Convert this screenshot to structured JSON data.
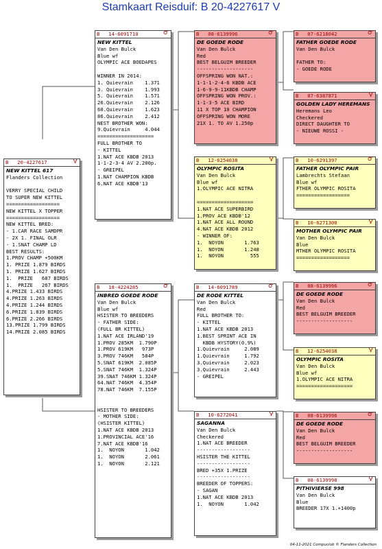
{
  "title": "Stamkaart Reisduif: B    20-4227617 V",
  "footer": "04-11-2021     Compuclub © Flanders Collection",
  "colors": {
    "red_card": "#f4a5a5",
    "yellow_card": "#ffffbe",
    "header_text": "#9b0000"
  },
  "cards": [
    {
      "id": "c0",
      "bg": "w",
      "ring": "B   20-4227617",
      "sex": "♀",
      "lines": [
        "NEW KITTEL 617",
        "Flanders Collection",
        "",
        "VERRY SPECIAL CHILD",
        "TO SUPER NEW KITTEL",
        "==================",
        "NEW KITTEL X TOPPER",
        "==================",
        "NEW KITTEL BRED:",
        "- 1.CAR RACE SAMDPR",
        "- 2X 1. FINAL OLR",
        "- 1.SNAT CHAMP LD",
        "BEST RESULTS:",
        "1.PROV CHAMP +500KM",
        "1. PRIZE 1.879 BIRDS",
        "1. PRIZE 1.627 BIRDS",
        "1.  PRIZE   687 BIRDS",
        "1.  PRIZE   267 BIRDS",
        "4.PRIZE 1.433 BIRDS",
        "4.PRIZE 1.263 BIRDS",
        "4.PRIZE 1.244 BIRDS",
        "6.PRIZE 1.839 BIRDS",
        "6.PRIZE 2.266 BIRDS",
        "13.PRIZE 1.799 BIRDS",
        "14.PRIZE 2.085 BIRDS"
      ]
    },
    {
      "id": "c1",
      "bg": "w",
      "ring": "B   14-6091710",
      "sex": "♂",
      "lines": [
        "NEW KITTEL",
        "Van Den Bulck",
        "Blue wf",
        "OLYMPIC ACE BOEDAPES",
        "",
        "WINNER IN 2014:",
        "1. Quievrain    1.371",
        "3. Quievrain    1.993",
        "5. Quievrain    1.571",
        "26.Quievrain    2.126",
        "60.Quievrain    1.623",
        "86.Quievrain    2.412",
        "NEST BROTHER WON:",
        "9.Quievrain     4.044",
        "===================",
        "FULL BROTHER TO",
        "- KITTEL",
        "1.NAT ACE KBDB 2013",
        "1-1-2-3-4 AV 2.200p.",
        "- GREIPEL",
        "1.NAT CHAMPION KBDB",
        "6.NAT ACE KBDB'13"
      ]
    },
    {
      "id": "c2",
      "bg": "w",
      "ring": "B   18-4224285",
      "sex": "♂",
      "lines": [
        "INBRED GOEDE RODE",
        "Van Den Bulck",
        "Blue wf",
        "HSISTER TO BREEDERS",
        "- FATHER SIDE:",
        "(FULL BR KITTEL)",
        "1.NAT ACE IRLAND'19",
        "1.PROV 285KM  1.790P",
        "1.PROV 619KM   973P",
        "3.PROV 746KM   584P",
        "5.SNAT 619KM  2.085P",
        "5.SNAT 746KM  1.324P",
        "39.SNAT 746KM 1.324P",
        "64.NAT 746KM  4.354P",
        "78.NAT 746KM  7.155P",
        "",
        "",
        "HSISTER TO BREEDERS",
        "- MOTHER SIDE:",
        "(HSISTER KITTEL)",
        "1.NAT ACE KBDB 2013",
        "1.PROVINCIAL ACE'16",
        "7.NAT ACE KBDB'16",
        "1.  NOYON       1.042",
        "1.  NOYON       2.061",
        "1.  NOYON       2.121"
      ]
    },
    {
      "id": "c3",
      "bg": "r",
      "ring": "B   08-6139996",
      "sex": "♂",
      "lines": [
        "DE GOEDE RODE",
        "Van Den Bulck",
        "Red",
        "BEST BELGUIM BREEDER",
        "-------------------",
        "OFFSPRING WON NAT.:",
        "1-1-1-2-4-6 KBDB ACE",
        "1-6-9-9-11KBDB CHAMP",
        "OFFSPRING WON PROV.:",
        "1-1-3-5 ACE BIRD",
        "11 X TOP 10 CHAMPION",
        "OFFSPRING WON MORE",
        "21X 1. TO AV 1.250p"
      ]
    },
    {
      "id": "c4",
      "bg": "y",
      "ring": "B   12-6254038",
      "sex": "♀",
      "lines": [
        "OLYMPIC ROSITA",
        "Van Den Bulck",
        "Blue wf",
        "1.OLYMPIC ACE NITRA",
        "",
        "===================",
        "1.NAT ACE SUPERBIRD",
        "1.PROV ACE KBDB'12",
        "1.NAT ACE ALL ROUND",
        "4.NAT ACE KBDB 2012",
        "- WINNER OF:",
        "1.  NOYON       1.763",
        "1.  NOYON       1.248",
        "1.  NOYON         555"
      ]
    },
    {
      "id": "c5",
      "bg": "w",
      "ring": "B   14-6091789",
      "sex": "♂",
      "lines": [
        "DE RODE KITTEL",
        "Van Den Bulck",
        "Red",
        "FULL BROTHER TO:",
        "- KITTEL",
        "1.NAT ACE KBDB 2013",
        "1.BEST SPRINT ACE IN",
        "  KBDB HYSTORY(0.9%)",
        "1.Quievrain     2.089",
        "1.Quievrain     1.792",
        "3.Quievrain     2.023",
        "3.Quievrain     2.443",
        "- GREIPEL"
      ]
    },
    {
      "id": "c6",
      "bg": "w",
      "ring": "B   10-6272041",
      "sex": "♀",
      "lines": [
        "SAGANNA",
        "Van Den Bulck",
        "Checkered",
        "1.NAT ACE BREEDER",
        "------------------",
        "HSISTER THE KITTEL",
        "------------------",
        "BRED +35X 1.PRIZE",
        "------------------",
        "BREEDER OF TOPPERS:",
        "- SAGAN",
        "1.NAT ACE KBDB 2013",
        "1.  NOYON       1.042"
      ]
    },
    {
      "id": "c7",
      "bg": "r",
      "ring": "B   07-6218042",
      "sex": "♂",
      "lines": [
        "FATHER GOEDE RODE",
        "Van Den Bulck",
        "",
        "FATHER TO:",
        "- GOEDE RODE"
      ]
    },
    {
      "id": "c8",
      "bg": "r",
      "ring": "B   07-6387871",
      "sex": "♀",
      "lines": [
        "GOLDEN LADY HEREMANS",
        "Heremans Leo",
        "Checkered",
        "DIRECT DAUGHTER TO",
        "- NIEUWE ROSSI -"
      ]
    },
    {
      "id": "c9",
      "bg": "y",
      "ring": "B   10-6291397",
      "sex": "♂",
      "lines": [
        "FATHER OLYMPIC PAIR",
        "Lambrechts Stefaan",
        "Blue wf",
        "FTHER OLYMPIC ROSITA",
        "=================="
      ]
    },
    {
      "id": "c10",
      "bg": "y",
      "ring": "B   10-6271300",
      "sex": "♀",
      "lines": [
        "MOTHER OLYMPIC PAIR",
        "Van Den Bulck",
        "Blue",
        "MTHER OLYMPIC ROSITA",
        "=================="
      ]
    },
    {
      "id": "c11",
      "bg": "r",
      "ring": "B   08-6139996",
      "sex": "♂",
      "lines": [
        "DE GOEDE RODE",
        "Van Den Bulck",
        "Red",
        "BEST BELGUIM BREEDER",
        "-------------------"
      ]
    },
    {
      "id": "c12",
      "bg": "y",
      "ring": "B   12-6254038",
      "sex": "♀",
      "lines": [
        "OLYMPIC ROSITA",
        "Van Den Bulck",
        "Blue wf",
        "1.OLYMPIC ACE NITRA",
        "==================="
      ]
    },
    {
      "id": "c13",
      "bg": "r",
      "ring": "B   08-6139996",
      "sex": "♂",
      "lines": [
        "DE GOEDE RODE",
        "Van Den Bulck",
        "Red",
        "BEST BELGUIM BREEDER",
        "-------------------"
      ]
    },
    {
      "id": "c14",
      "bg": "w",
      "ring": "B   08-6139998",
      "sex": "♀",
      "lines": [
        "PITHIVIERSE 998",
        "Van Den Bulck",
        "Blue",
        "BREEDER 17X 1.+1400p"
      ]
    }
  ]
}
